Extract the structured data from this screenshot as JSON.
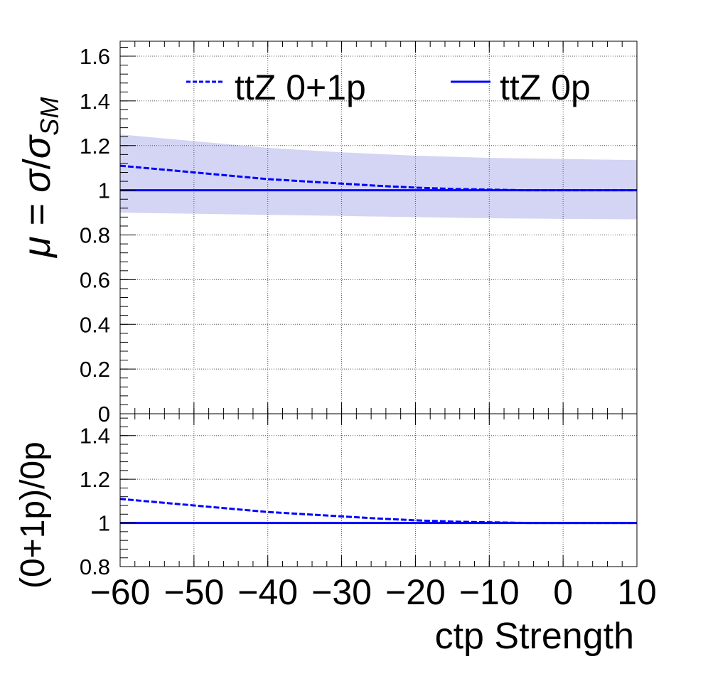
{
  "chart_data": [
    {
      "type": "line",
      "panel": "main",
      "xlim": [
        -60,
        10
      ],
      "ylim": [
        0,
        1.667
      ],
      "grid": true,
      "x_ticks": [
        -60,
        -50,
        -40,
        -30,
        -20,
        -10,
        0,
        10
      ],
      "y_ticks": [
        0,
        0.2,
        0.4,
        0.6,
        0.8,
        1,
        1.2,
        1.4,
        1.6
      ],
      "y_tick_labels": [
        "0",
        "0.2",
        "0.4",
        "0.6",
        "0.8",
        "1",
        "1.2",
        "1.4",
        "1.6"
      ],
      "ylabel_parts": {
        "mu": "μ",
        "equals": " = ",
        "sigma": "σ",
        "slash": "/",
        "sigma2": "σ",
        "sub": "SM"
      },
      "legend_placement": "top",
      "series": [
        {
          "name": "ttZ 0+1p",
          "style": "dashed",
          "color": "#0000ff",
          "x": [
            -60,
            -55,
            -50,
            -45,
            -40,
            -35,
            -30,
            -25,
            -20,
            -15,
            -10,
            -5,
            0,
            5,
            10
          ],
          "y": [
            1.11,
            1.095,
            1.08,
            1.065,
            1.05,
            1.04,
            1.03,
            1.02,
            1.012,
            1.006,
            1.003,
            1.0,
            1.0,
            1.0,
            1.0
          ]
        },
        {
          "name": "ttZ 0p",
          "style": "solid",
          "color": "#0000ff",
          "x": [
            -60,
            10
          ],
          "y": [
            1.0,
            1.0
          ]
        }
      ],
      "band": {
        "color": "#3a3ad0",
        "x": [
          -60,
          -50,
          -40,
          -30,
          -20,
          -10,
          0,
          10
        ],
        "upper": [
          1.25,
          1.22,
          1.19,
          1.17,
          1.155,
          1.145,
          1.14,
          1.135
        ],
        "lower": [
          0.9,
          0.895,
          0.89,
          0.885,
          0.88,
          0.875,
          0.872,
          0.87
        ]
      }
    },
    {
      "type": "line",
      "panel": "ratio",
      "xlim": [
        -60,
        10
      ],
      "ylim": [
        0.8,
        1.5
      ],
      "grid": true,
      "x_ticks": [
        -60,
        -50,
        -40,
        -30,
        -20,
        -10,
        0,
        10
      ],
      "x_tick_labels": [
        "−60",
        "−50",
        "−40",
        "−30",
        "−20",
        "−10",
        "0",
        "10"
      ],
      "y_ticks": [
        0.8,
        1,
        1.2,
        1.4
      ],
      "y_tick_labels": [
        "0.8",
        "1",
        "1.2",
        "1.4"
      ],
      "xlabel": "ctp Strength",
      "ylabel": "(0+1p)/0p",
      "series": [
        {
          "style": "dashed",
          "color": "#0000ff",
          "x": [
            -60,
            -55,
            -50,
            -45,
            -40,
            -35,
            -30,
            -25,
            -20,
            -15,
            -10,
            -5,
            0,
            5,
            10
          ],
          "y": [
            1.11,
            1.095,
            1.08,
            1.065,
            1.05,
            1.04,
            1.03,
            1.02,
            1.012,
            1.006,
            1.003,
            1.0,
            1.0,
            1.0,
            1.0
          ]
        },
        {
          "style": "solid",
          "color": "#0000ff",
          "x": [
            -60,
            10
          ],
          "y": [
            1.0,
            1.0
          ]
        }
      ]
    }
  ]
}
